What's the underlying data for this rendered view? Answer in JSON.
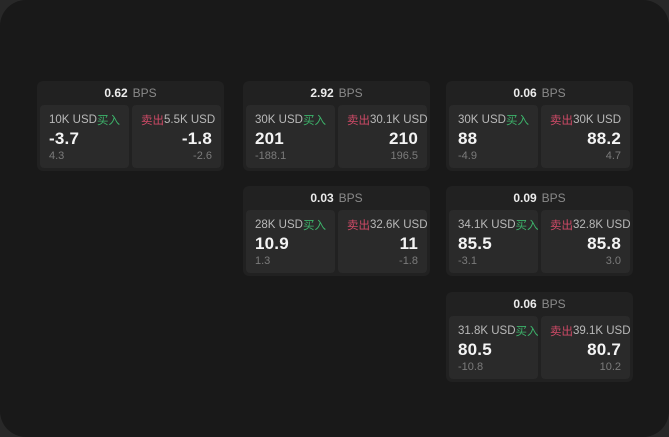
{
  "colors": {
    "outer_bg": "#282828",
    "panel_bg": "#191919",
    "card_bg": "#212121",
    "pane_bg": "#2a2a2a",
    "buy_green": "#3db46b",
    "sell_red": "#cf4a67"
  },
  "bps_unit": "BPS",
  "cards": [
    {
      "bps_value": "0.62",
      "bps_unit": "BPS",
      "buy": {
        "amount": "10K USD",
        "label": "买入",
        "value": "-3.7",
        "delta": "4.3"
      },
      "sell": {
        "label": "卖出",
        "amount": "5.5K USD",
        "value": "-1.8",
        "delta": "-2.6"
      }
    },
    {
      "bps_value": "2.92",
      "bps_unit": "BPS",
      "buy": {
        "amount": "30K USD",
        "label": "买入",
        "value": "201",
        "delta": "-188.1"
      },
      "sell": {
        "label": "卖出",
        "amount": "30.1K USD",
        "value": "210",
        "delta": "196.5"
      }
    },
    {
      "bps_value": "0.06",
      "bps_unit": "BPS",
      "buy": {
        "amount": "30K USD",
        "label": "买入",
        "value": "88",
        "delta": "-4.9"
      },
      "sell": {
        "label": "卖出",
        "amount": "30K USD",
        "value": "88.2",
        "delta": "4.7"
      }
    },
    {
      "bps_value": "0.03",
      "bps_unit": "BPS",
      "buy": {
        "amount": "28K USD",
        "label": "买入",
        "value": "10.9",
        "delta": "1.3"
      },
      "sell": {
        "label": "卖出",
        "amount": "32.6K USD",
        "value": "11",
        "delta": "-1.8"
      }
    },
    {
      "bps_value": "0.09",
      "bps_unit": "BPS",
      "buy": {
        "amount": "34.1K USD",
        "label": "买入",
        "value": "85.5",
        "delta": "-3.1"
      },
      "sell": {
        "label": "卖出",
        "amount": "32.8K USD",
        "value": "85.8",
        "delta": "3.0"
      }
    },
    {
      "bps_value": "0.06",
      "bps_unit": "BPS",
      "buy": {
        "amount": "31.8K USD",
        "label": "买入",
        "value": "80.5",
        "delta": "-10.8"
      },
      "sell": {
        "label": "卖出",
        "amount": "39.1K USD",
        "value": "80.7",
        "delta": "10.2"
      }
    }
  ]
}
